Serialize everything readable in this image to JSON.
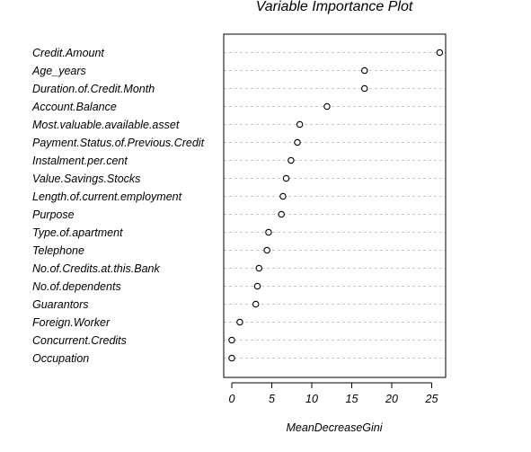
{
  "chart_data": {
    "type": "scatter",
    "title": "Variable Importance Plot",
    "xlabel": "MeanDecreaseGini",
    "ylabel": "",
    "xlim": [
      -1,
      27
    ],
    "xticks": [
      0,
      5,
      10,
      15,
      20,
      25
    ],
    "grid": "horizontal dashed",
    "categories": [
      "Credit.Amount",
      "Age_years",
      "Duration.of.Credit.Month",
      "Account.Balance",
      "Most.valuable.available.asset",
      "Payment.Status.of.Previous.Credit",
      "Instalment.per.cent",
      "Value.Savings.Stocks",
      "Length.of.current.employment",
      "Purpose",
      "Type.of.apartment",
      "Telephone",
      "No.of.Credits.at.this.Bank",
      "No.of.dependents",
      "Guarantors",
      "Foreign.Worker",
      "Concurrent.Credits",
      "Occupation"
    ],
    "values": [
      26.0,
      16.6,
      16.6,
      11.9,
      8.5,
      8.2,
      7.4,
      6.8,
      6.4,
      6.2,
      4.6,
      4.4,
      3.4,
      3.2,
      3.0,
      1.0,
      0.0,
      0.0
    ]
  }
}
